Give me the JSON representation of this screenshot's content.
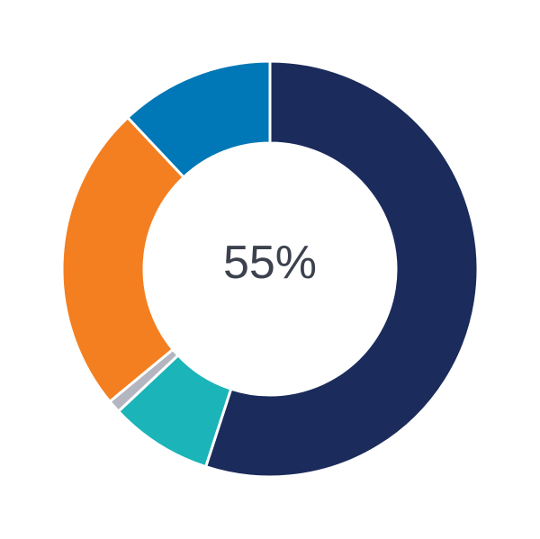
{
  "chart_data": {
    "type": "pie",
    "variant": "donut",
    "center_label": "55%",
    "start": "top",
    "direction": "clockwise",
    "slices": [
      {
        "value": 55,
        "color": "#1b2b5b"
      },
      {
        "value": 8,
        "color": "#1bb4b8"
      },
      {
        "value": 1,
        "color": "#b3b5c0"
      },
      {
        "value": 24,
        "color": "#f47f20"
      },
      {
        "value": 12,
        "color": "#0077b6"
      }
    ]
  }
}
